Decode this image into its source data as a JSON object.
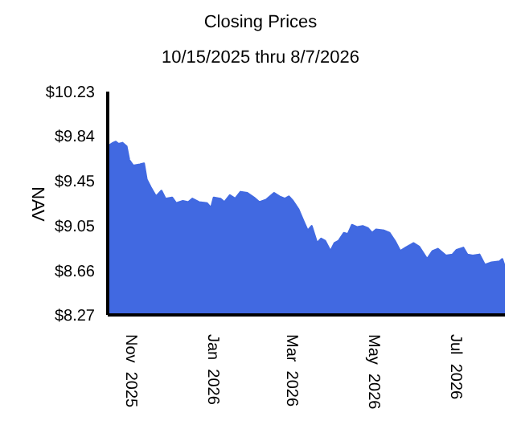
{
  "chart_data": {
    "type": "area",
    "title": "Closing Prices",
    "subtitle": "10/15/2025 thru 8/7/2026",
    "ylabel": "NAV",
    "x": [
      "2025-10-15",
      "2025-10-19",
      "2025-10-21",
      "2025-10-23",
      "2025-10-26",
      "2025-10-29",
      "2025-10-31",
      "2025-11-03",
      "2025-11-08",
      "2025-11-11",
      "2025-11-13",
      "2025-11-16",
      "2025-11-20",
      "2025-11-24",
      "2025-11-27",
      "2025-12-02",
      "2025-12-05",
      "2025-12-10",
      "2025-12-14",
      "2025-12-17",
      "2025-12-22",
      "2025-12-28",
      "2025-12-31",
      "2026-01-02",
      "2026-01-07",
      "2026-01-10",
      "2026-01-14",
      "2026-01-18",
      "2026-01-22",
      "2026-01-27",
      "2026-02-01",
      "2026-02-05",
      "2026-02-10",
      "2026-02-16",
      "2026-02-20",
      "2026-02-24",
      "2026-02-27",
      "2026-03-02",
      "2026-03-06",
      "2026-03-10",
      "2026-03-13",
      "2026-03-16",
      "2026-03-20",
      "2026-03-23",
      "2026-03-26",
      "2026-03-30",
      "2026-04-02",
      "2026-04-05",
      "2026-04-09",
      "2026-04-12",
      "2026-04-15",
      "2026-04-19",
      "2026-04-23",
      "2026-04-27",
      "2026-04-30",
      "2026-05-03",
      "2026-05-09",
      "2026-05-13",
      "2026-05-17",
      "2026-05-21",
      "2026-05-25",
      "2026-05-31",
      "2026-06-04",
      "2026-06-10",
      "2026-06-14",
      "2026-06-18",
      "2026-06-24",
      "2026-06-29",
      "2026-07-02",
      "2026-07-07",
      "2026-07-10",
      "2026-07-14",
      "2026-07-19",
      "2026-07-23",
      "2026-07-28",
      "2026-08-03",
      "2026-08-05",
      "2026-08-07"
    ],
    "series": [
      {
        "color": "#4169e1",
        "values": [
          9.75,
          9.78,
          9.79,
          9.77,
          9.78,
          9.75,
          9.63,
          9.58,
          9.59,
          9.6,
          9.46,
          9.39,
          9.31,
          9.36,
          9.29,
          9.3,
          9.25,
          9.27,
          9.26,
          9.29,
          9.26,
          9.25,
          9.21,
          9.3,
          9.29,
          9.26,
          9.32,
          9.29,
          9.35,
          9.34,
          9.3,
          9.26,
          9.28,
          9.34,
          9.31,
          9.29,
          9.31,
          9.27,
          9.2,
          9.09,
          9.01,
          9.05,
          8.9,
          8.94,
          8.92,
          8.83,
          8.9,
          8.92,
          8.99,
          8.98,
          9.06,
          9.04,
          9.05,
          9.03,
          8.99,
          9.02,
          9.01,
          8.99,
          8.92,
          8.83,
          8.86,
          8.9,
          8.87,
          8.76,
          8.83,
          8.85,
          8.79,
          8.8,
          8.84,
          8.86,
          8.8,
          8.79,
          8.8,
          8.71,
          8.73,
          8.74,
          8.76,
          8.69
        ]
      }
    ],
    "xlim": [
      "2025-10-15",
      "2026-08-07"
    ],
    "xticks": [
      {
        "value": "2025-11-01",
        "label": "Nov 2025"
      },
      {
        "value": "2026-01-01",
        "label": "Jan 2026"
      },
      {
        "value": "2026-03-01",
        "label": "Mar 2026"
      },
      {
        "value": "2026-05-01",
        "label": "May 2026"
      },
      {
        "value": "2026-07-01",
        "label": "Jul 2026"
      }
    ],
    "ylim": [
      8.27,
      10.23
    ],
    "yticks": [
      {
        "value": 8.27,
        "label": "$8.27"
      },
      {
        "value": 8.66,
        "label": "$8.66"
      },
      {
        "value": 9.05,
        "label": "$9.05"
      },
      {
        "value": 9.45,
        "label": "$9.45"
      },
      {
        "value": 9.84,
        "label": "$9.84"
      },
      {
        "value": 10.23,
        "label": "$10.23"
      }
    ],
    "grid": false,
    "legend": false
  }
}
